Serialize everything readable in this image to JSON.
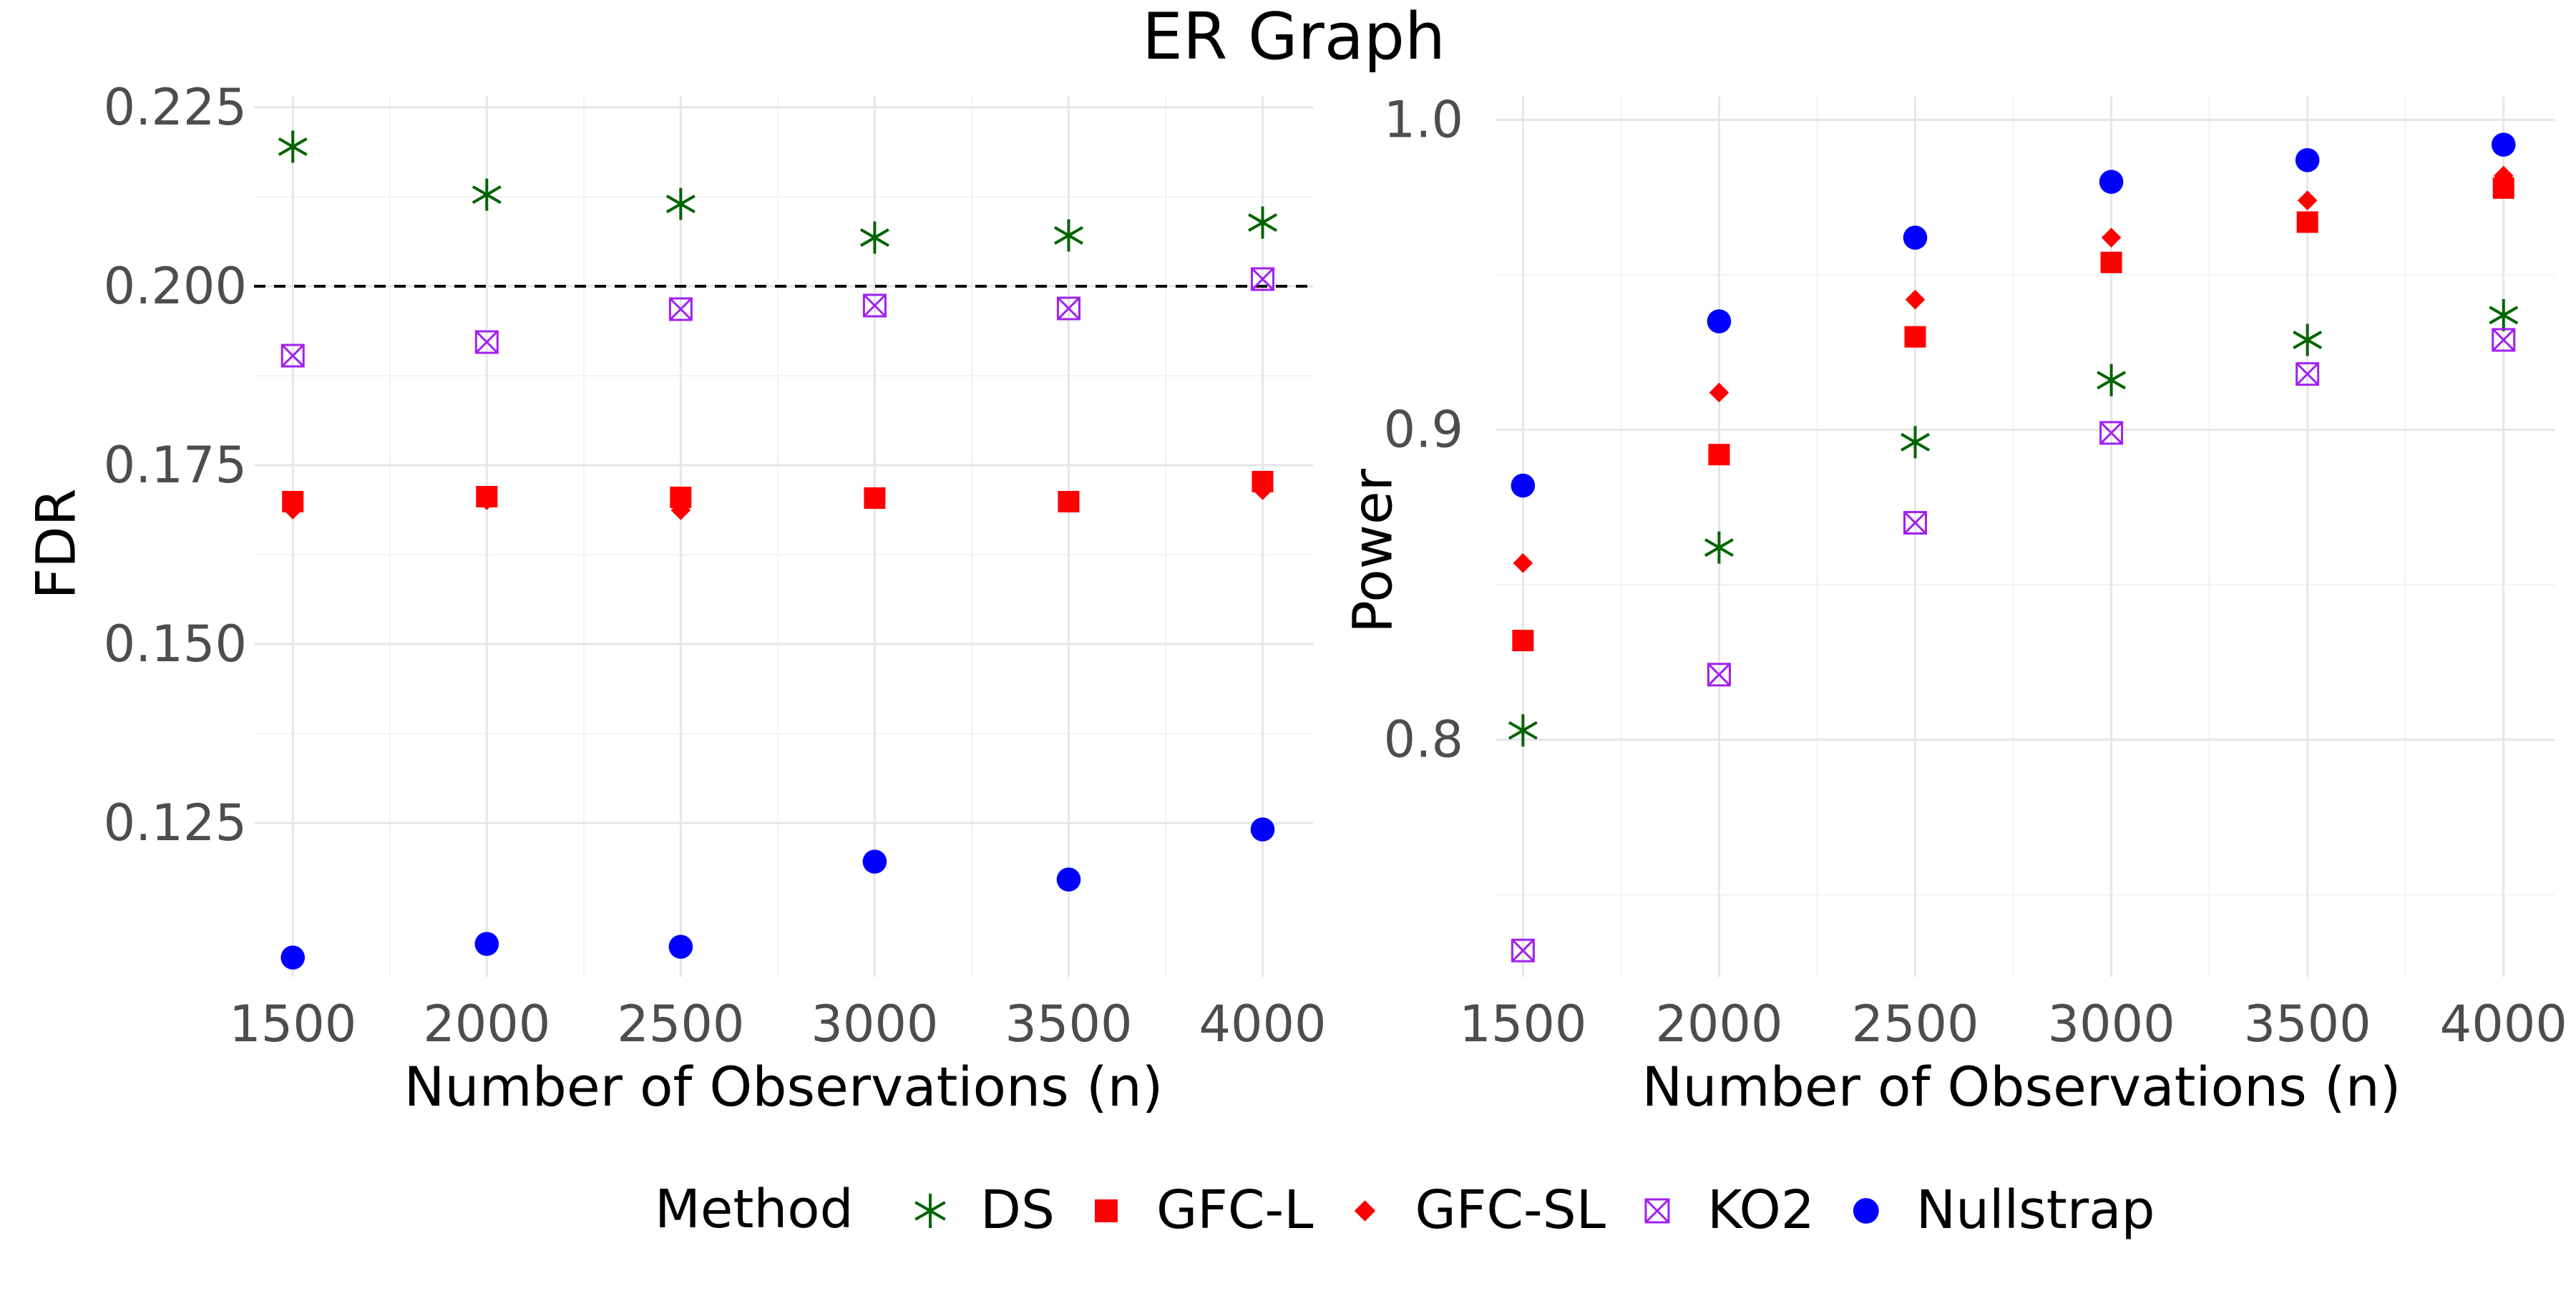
{
  "title": "ER Graph",
  "legend": {
    "title": "Method",
    "entries": [
      {
        "name": "DS",
        "marker": "asterisk",
        "color": "#006400"
      },
      {
        "name": "GFC-L",
        "marker": "square",
        "color": "#ff0000"
      },
      {
        "name": "GFC-SL",
        "marker": "diamond",
        "color": "#ff0000"
      },
      {
        "name": "KO2",
        "marker": "square-x",
        "color": "#a020f0"
      },
      {
        "name": "Nullstrap",
        "marker": "circle",
        "color": "#0000ff"
      }
    ]
  },
  "chart_data": [
    {
      "type": "scatter",
      "id": "fdr",
      "xlabel": "Number of Observations (n)",
      "ylabel": "FDR",
      "x": [
        1500,
        2000,
        2500,
        3000,
        3500,
        4000
      ],
      "xlim": [
        1400,
        4130
      ],
      "ylim": [
        0.1035,
        0.2265
      ],
      "xticks": [
        1500,
        2000,
        2500,
        3000,
        3500,
        4000
      ],
      "xtick_labels": [
        "1500",
        "2000",
        "2500",
        "3000",
        "3500",
        "4000"
      ],
      "yticks": [
        0.125,
        0.15,
        0.175,
        0.2,
        0.225
      ],
      "ytick_labels": [
        "0.125",
        "0.150",
        "0.175",
        "0.200",
        "0.225"
      ],
      "yminor": [
        0.1375,
        0.1625,
        0.1875,
        0.2125
      ],
      "xminor": [
        1750,
        2250,
        2750,
        3250,
        3750
      ],
      "reference_line": 0.2,
      "series": [
        {
          "name": "DS",
          "values": [
            0.2195,
            0.2128,
            0.2115,
            0.2068,
            0.2071,
            0.2089
          ]
        },
        {
          "name": "GFC-L",
          "values": [
            0.1699,
            0.1706,
            0.1705,
            0.1704,
            0.1699,
            0.1727
          ]
        },
        {
          "name": "GFC-SL",
          "values": [
            0.1688,
            0.1701,
            0.1687,
            0.1703,
            0.1697,
            0.1715
          ]
        },
        {
          "name": "KO2",
          "values": [
            0.1903,
            0.1922,
            0.1968,
            0.1973,
            0.1969,
            0.201
          ]
        },
        {
          "name": "Nullstrap",
          "values": [
            0.1062,
            0.1081,
            0.1077,
            0.1196,
            0.1171,
            0.1241
          ]
        }
      ]
    },
    {
      "type": "scatter",
      "id": "power",
      "xlabel": "Number of Observations (n)",
      "ylabel": "Power",
      "x": [
        1500,
        2000,
        2500,
        3000,
        3500,
        4000
      ],
      "xlim": [
        1430,
        4130
      ],
      "ylim": [
        0.7235,
        1.0075
      ],
      "xticks": [
        1500,
        2000,
        2500,
        3000,
        3500,
        4000
      ],
      "xtick_labels": [
        "1500",
        "2000",
        "2500",
        "3000",
        "3500",
        "4000"
      ],
      "yticks": [
        0.8,
        0.9,
        1.0
      ],
      "ytick_labels": [
        "0.8",
        "0.9",
        "1.0"
      ],
      "yminor": [
        0.75,
        0.85,
        0.95
      ],
      "xminor": [
        1750,
        2250,
        2750,
        3250,
        3750
      ],
      "series": [
        {
          "name": "DS",
          "values": [
            0.803,
            0.862,
            0.896,
            0.916,
            0.929,
            0.937
          ]
        },
        {
          "name": "GFC-L",
          "values": [
            0.832,
            0.892,
            0.93,
            0.954,
            0.967,
            0.978
          ]
        },
        {
          "name": "GFC-SL",
          "values": [
            0.857,
            0.912,
            0.942,
            0.962,
            0.974,
            0.982
          ]
        },
        {
          "name": "KO2",
          "values": [
            0.732,
            0.821,
            0.87,
            0.899,
            0.918,
            0.929
          ]
        },
        {
          "name": "Nullstrap",
          "values": [
            0.882,
            0.935,
            0.962,
            0.98,
            0.987,
            0.992
          ]
        }
      ]
    }
  ]
}
